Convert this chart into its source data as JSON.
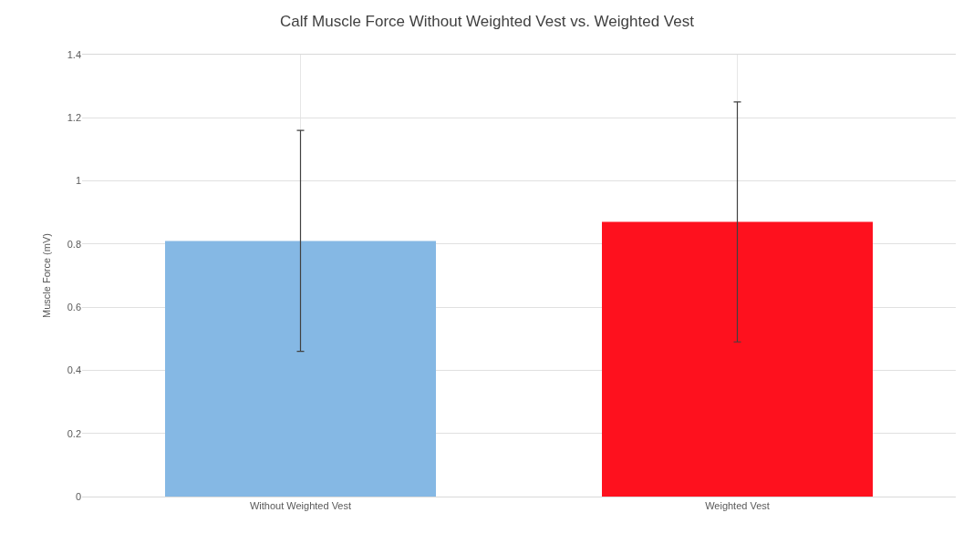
{
  "chart_data": {
    "type": "bar",
    "title": "Calf Muscle Force Without Weighted Vest vs. Weighted Vest",
    "ylabel": "Muscle Force (mV)",
    "categories": [
      "Without Weighted Vest",
      "Weighted Vest"
    ],
    "values": [
      0.81,
      0.87
    ],
    "colors": [
      "#85b8e4",
      "#fe111e"
    ],
    "errors": [
      0.35,
      0.38
    ],
    "ylim": [
      0,
      1.4
    ],
    "yticks": [
      0,
      0.2,
      0.4,
      0.6,
      0.8,
      1,
      1.2,
      1.4
    ],
    "grid": true
  }
}
